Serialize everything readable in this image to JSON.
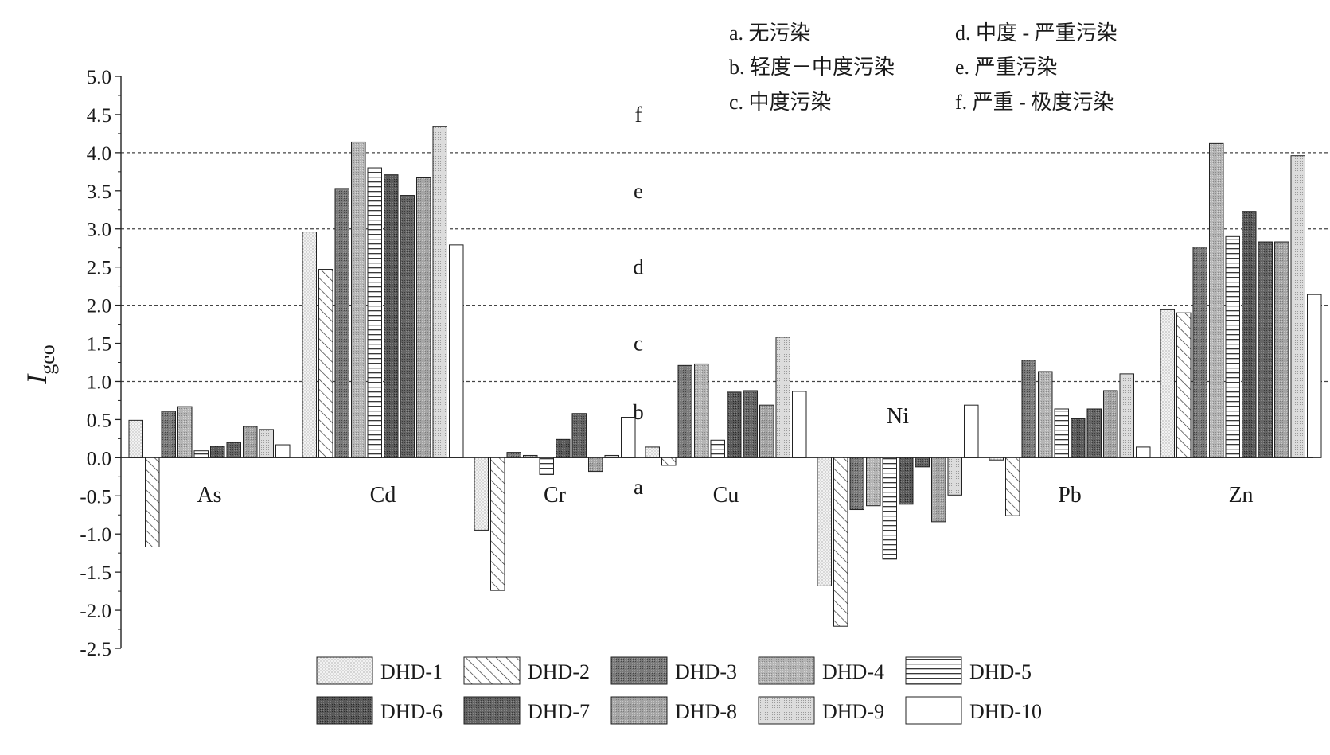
{
  "chart_data": {
    "type": "bar",
    "ylabel": "I",
    "ylabel_subscript": "geo",
    "ylim": [
      -2.5,
      5.0
    ],
    "y_tick_step": 0.5,
    "y_ticks": [
      "5.0",
      "4.5",
      "4.0",
      "3.5",
      "3.0",
      "2.5",
      "2.0",
      "1.5",
      "1.0",
      "0.5",
      "0.0",
      "-0.5",
      "-1.0",
      "-1.5",
      "-2.0",
      "-2.5"
    ],
    "threshold_lines": [
      1.0,
      2.0,
      3.0,
      4.0
    ],
    "categories": [
      "As",
      "Cd",
      "Cr",
      "Cu",
      "Ni",
      "Pb",
      "Zn"
    ],
    "series": [
      {
        "name": "DHD-1",
        "pattern": "dots-fine",
        "values": [
          0.49,
          2.96,
          -0.95,
          0.14,
          -1.68,
          -0.03,
          1.94
        ]
      },
      {
        "name": "DHD-2",
        "pattern": "diagonal",
        "values": [
          -1.17,
          2.47,
          -1.74,
          -0.1,
          -2.21,
          -0.76,
          1.9
        ]
      },
      {
        "name": "DHD-3",
        "pattern": "cross-dark",
        "values": [
          0.61,
          3.53,
          0.07,
          1.21,
          -0.68,
          1.28,
          2.76
        ]
      },
      {
        "name": "DHD-4",
        "pattern": "dots-mid",
        "values": [
          0.67,
          4.14,
          0.03,
          1.23,
          -0.63,
          1.13,
          4.12
        ]
      },
      {
        "name": "DHD-5",
        "pattern": "horizontal",
        "values": [
          0.09,
          3.8,
          -0.22,
          0.23,
          -1.33,
          0.64,
          2.9
        ]
      },
      {
        "name": "DHD-6",
        "pattern": "cross-darker",
        "values": [
          0.15,
          3.71,
          0.24,
          0.86,
          -0.61,
          0.51,
          3.23
        ]
      },
      {
        "name": "DHD-7",
        "pattern": "mesh-dark",
        "values": [
          0.2,
          3.44,
          0.58,
          0.88,
          -0.12,
          0.64,
          2.83
        ]
      },
      {
        "name": "DHD-8",
        "pattern": "dots-gray",
        "values": [
          0.41,
          3.67,
          -0.18,
          0.69,
          -0.84,
          0.88,
          2.83
        ]
      },
      {
        "name": "DHD-9",
        "pattern": "dots-light",
        "values": [
          0.37,
          4.34,
          0.03,
          1.58,
          -0.49,
          1.1,
          3.96
        ]
      },
      {
        "name": "DHD-10",
        "pattern": "blank",
        "values": [
          0.17,
          2.79,
          0.53,
          0.87,
          0.69,
          0.14,
          2.14
        ]
      }
    ],
    "zone_labels": [
      {
        "label": "f",
        "value": 4.5
      },
      {
        "label": "e",
        "value": 3.5
      },
      {
        "label": "d",
        "value": 2.5
      },
      {
        "label": "c",
        "value": 1.5
      },
      {
        "label": "b",
        "value": 0.6
      },
      {
        "label": "a",
        "value": -0.38
      }
    ],
    "pollution_classes": [
      "a. 无污染",
      "b. 轻度－中度污染",
      "c. 中度污染",
      "d. 中度 - 严重污染",
      "e. 严重污染",
      "f. 严重 - 极度污染"
    ],
    "legend_placement": "bottom"
  }
}
